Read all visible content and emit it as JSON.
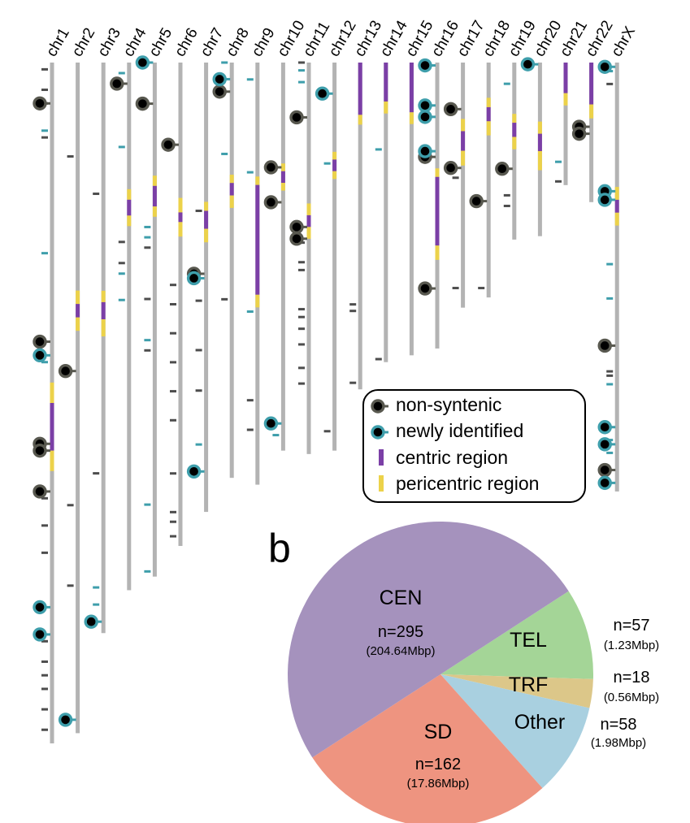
{
  "chart_data": [
    {
      "type": "ideogram",
      "chromosomes": [
        {
          "name": "chr1",
          "length_rel": 1.0,
          "regions": [
            {
              "kind": "pericentric",
              "start": 0.47,
              "end": 0.5
            },
            {
              "kind": "centric",
              "start": 0.5,
              "end": 0.57
            },
            {
              "kind": "pericentric",
              "start": 0.57,
              "end": 0.6
            }
          ],
          "nonsyntenic": [
            0.06,
            0.41,
            0.56,
            0.57,
            0.63
          ],
          "newly": [
            0.43,
            0.8,
            0.84
          ],
          "grey_ticks": [
            0.01,
            0.04,
            0.06,
            0.11,
            0.64,
            0.68,
            0.72,
            0.85,
            0.88,
            0.9,
            0.92,
            0.95,
            0.98
          ],
          "teal_ticks": [
            0.1,
            0.28,
            0.44
          ]
        },
        {
          "name": "chr2",
          "length_rel": 0.985,
          "regions": [
            {
              "kind": "pericentric",
              "start": 0.34,
              "end": 0.36
            },
            {
              "kind": "centric",
              "start": 0.36,
              "end": 0.38
            },
            {
              "kind": "pericentric",
              "start": 0.38,
              "end": 0.4
            }
          ],
          "nonsyntenic": [
            0.46
          ],
          "newly": [
            0.98
          ],
          "grey_ticks": [
            0.14,
            0.66,
            0.78
          ],
          "teal_ticks": []
        },
        {
          "name": "chr3",
          "length_rel": 0.838,
          "regions": [
            {
              "kind": "pericentric",
              "start": 0.4,
              "end": 0.42
            },
            {
              "kind": "centric",
              "start": 0.42,
              "end": 0.45
            },
            {
              "kind": "pericentric",
              "start": 0.45,
              "end": 0.48
            }
          ],
          "nonsyntenic": [],
          "newly": [
            0.98
          ],
          "grey_ticks": [
            0.23,
            0.72
          ],
          "teal_ticks": [
            0.92,
            0.95
          ]
        },
        {
          "name": "chr4",
          "length_rel": 0.775,
          "regions": [
            {
              "kind": "pericentric",
              "start": 0.24,
              "end": 0.26
            },
            {
              "kind": "centric",
              "start": 0.26,
              "end": 0.29
            },
            {
              "kind": "pericentric",
              "start": 0.29,
              "end": 0.31
            }
          ],
          "nonsyntenic": [
            0.04
          ],
          "newly": [],
          "grey_ticks": [
            0.34,
            0.38
          ],
          "teal_ticks": [
            0.02,
            0.16,
            0.4,
            0.45
          ]
        },
        {
          "name": "chr5",
          "length_rel": 0.755,
          "regions": [
            {
              "kind": "pericentric",
              "start": 0.22,
              "end": 0.24
            },
            {
              "kind": "centric",
              "start": 0.24,
              "end": 0.28
            },
            {
              "kind": "pericentric",
              "start": 0.28,
              "end": 0.3
            }
          ],
          "nonsyntenic": [
            0.08
          ],
          "newly": [
            0.0
          ],
          "grey_ticks": [
            0.36,
            0.46,
            0.56
          ],
          "teal_ticks": [
            0.32,
            0.34,
            0.54,
            0.86,
            0.99
          ]
        },
        {
          "name": "chr6",
          "length_rel": 0.71,
          "regions": [
            {
              "kind": "pericentric",
              "start": 0.28,
              "end": 0.31
            },
            {
              "kind": "centric",
              "start": 0.31,
              "end": 0.33
            },
            {
              "kind": "pericentric",
              "start": 0.33,
              "end": 0.36
            }
          ],
          "nonsyntenic": [
            0.17
          ],
          "newly": [],
          "grey_ticks": [
            0.46,
            0.5,
            0.56,
            0.62,
            0.68,
            0.74,
            0.85,
            0.93,
            0.95,
            0.98
          ],
          "teal_ticks": []
        },
        {
          "name": "chr7",
          "length_rel": 0.66,
          "regions": [
            {
              "kind": "pericentric",
              "start": 0.31,
              "end": 0.33
            },
            {
              "kind": "centric",
              "start": 0.33,
              "end": 0.37
            },
            {
              "kind": "pericentric",
              "start": 0.37,
              "end": 0.4
            }
          ],
          "nonsyntenic": [
            0.47
          ],
          "newly": [
            0.48,
            0.91
          ],
          "grey_ticks": [
            0.33,
            0.53,
            0.64,
            0.73
          ],
          "teal_ticks": [
            0.85
          ]
        },
        {
          "name": "chr8",
          "length_rel": 0.61,
          "regions": [
            {
              "kind": "pericentric",
              "start": 0.27,
              "end": 0.29
            },
            {
              "kind": "centric",
              "start": 0.29,
              "end": 0.32
            },
            {
              "kind": "pericentric",
              "start": 0.32,
              "end": 0.35
            }
          ],
          "nonsyntenic": [
            0.07
          ],
          "newly": [
            0.04
          ],
          "grey_ticks": [
            0.57
          ],
          "teal_ticks": [
            0.0,
            0.22
          ]
        },
        {
          "name": "chr9",
          "length_rel": 0.62,
          "regions": [
            {
              "kind": "pericentric",
              "start": 0.27,
              "end": 0.29
            },
            {
              "kind": "centric",
              "start": 0.29,
              "end": 0.55
            },
            {
              "kind": "pericentric",
              "start": 0.55,
              "end": 0.58
            }
          ],
          "nonsyntenic": [],
          "newly": [],
          "grey_ticks": [
            0.8,
            0.87
          ],
          "teal_ticks": [
            0.04,
            0.26,
            0.59
          ]
        },
        {
          "name": "chr10",
          "length_rel": 0.57,
          "regions": [
            {
              "kind": "pericentric",
              "start": 0.26,
              "end": 0.28
            },
            {
              "kind": "centric",
              "start": 0.28,
              "end": 0.31
            },
            {
              "kind": "pericentric",
              "start": 0.31,
              "end": 0.33
            }
          ],
          "nonsyntenic": [
            0.27,
            0.36
          ],
          "newly": [
            0.93
          ],
          "grey_ticks": [],
          "teal_ticks": [
            0.96
          ]
        },
        {
          "name": "chr11",
          "length_rel": 0.575,
          "regions": [
            {
              "kind": "pericentric",
              "start": 0.36,
              "end": 0.39
            },
            {
              "kind": "centric",
              "start": 0.39,
              "end": 0.42
            },
            {
              "kind": "pericentric",
              "start": 0.42,
              "end": 0.45
            }
          ],
          "nonsyntenic": [
            0.14,
            0.42,
            0.45
          ],
          "newly": [],
          "grey_ticks": [
            0.0,
            0.46,
            0.51,
            0.53,
            0.63,
            0.65,
            0.68,
            0.72,
            0.78,
            0.82
          ],
          "teal_ticks": [
            0.02,
            0.05
          ]
        },
        {
          "name": "chr12",
          "length_rel": 0.57,
          "regions": [
            {
              "kind": "pericentric",
              "start": 0.23,
              "end": 0.25
            },
            {
              "kind": "centric",
              "start": 0.25,
              "end": 0.28
            },
            {
              "kind": "pericentric",
              "start": 0.28,
              "end": 0.3
            }
          ],
          "nonsyntenic": [],
          "newly": [
            0.08
          ],
          "grey_ticks": [
            0.95
          ],
          "teal_ticks": [
            0.26
          ]
        },
        {
          "name": "chr13",
          "length_rel": 0.48,
          "regions": [
            {
              "kind": "centric",
              "start": 0.0,
              "end": 0.16
            },
            {
              "kind": "pericentric",
              "start": 0.16,
              "end": 0.19
            }
          ],
          "nonsyntenic": [],
          "newly": [],
          "grey_ticks": [
            0.74,
            0.76,
            0.98
          ],
          "teal_ticks": []
        },
        {
          "name": "chr14",
          "length_rel": 0.44,
          "regions": [
            {
              "kind": "centric",
              "start": 0.0,
              "end": 0.13
            },
            {
              "kind": "pericentric",
              "start": 0.13,
              "end": 0.17
            }
          ],
          "nonsyntenic": [],
          "newly": [],
          "grey_ticks": [
            0.99
          ],
          "teal_ticks": [
            0.29
          ]
        },
        {
          "name": "chr15",
          "length_rel": 0.43,
          "regions": [
            {
              "kind": "centric",
              "start": 0.0,
              "end": 0.17
            },
            {
              "kind": "pericentric",
              "start": 0.17,
              "end": 0.21
            }
          ],
          "nonsyntenic": [],
          "newly": [],
          "grey_ticks": [],
          "teal_ticks": []
        },
        {
          "name": "chr16",
          "length_rel": 0.42,
          "regions": [
            {
              "kind": "pericentric",
              "start": 0.37,
              "end": 0.4
            },
            {
              "kind": "centric",
              "start": 0.4,
              "end": 0.64
            },
            {
              "kind": "pericentric",
              "start": 0.64,
              "end": 0.69
            }
          ],
          "nonsyntenic": [
            0.33,
            0.79
          ],
          "newly": [
            0.01,
            0.15,
            0.19,
            0.31
          ],
          "grey_ticks": [],
          "teal_ticks": []
        },
        {
          "name": "chr17",
          "length_rel": 0.36,
          "regions": [
            {
              "kind": "pericentric",
              "start": 0.23,
              "end": 0.28
            },
            {
              "kind": "centric",
              "start": 0.28,
              "end": 0.36
            },
            {
              "kind": "pericentric",
              "start": 0.36,
              "end": 0.42
            }
          ],
          "nonsyntenic": [
            0.19,
            0.43
          ],
          "newly": [],
          "grey_ticks": [
            0.47,
            0.92
          ],
          "teal_ticks": []
        },
        {
          "name": "chr18",
          "length_rel": 0.345,
          "regions": [
            {
              "kind": "pericentric",
              "start": 0.15,
              "end": 0.19
            },
            {
              "kind": "centric",
              "start": 0.19,
              "end": 0.25
            },
            {
              "kind": "pericentric",
              "start": 0.25,
              "end": 0.31
            }
          ],
          "nonsyntenic": [
            0.59
          ],
          "newly": [],
          "grey_ticks": [
            0.96
          ],
          "teal_ticks": []
        },
        {
          "name": "chr19",
          "length_rel": 0.26,
          "regions": [
            {
              "kind": "pericentric",
              "start": 0.29,
              "end": 0.34
            },
            {
              "kind": "centric",
              "start": 0.34,
              "end": 0.42
            },
            {
              "kind": "pericentric",
              "start": 0.42,
              "end": 0.49
            }
          ],
          "nonsyntenic": [
            0.6
          ],
          "newly": [],
          "grey_ticks": [
            0.75,
            0.81
          ],
          "teal_ticks": [
            0.12
          ]
        },
        {
          "name": "chr20",
          "length_rel": 0.255,
          "regions": [
            {
              "kind": "pericentric",
              "start": 0.34,
              "end": 0.41
            },
            {
              "kind": "centric",
              "start": 0.41,
              "end": 0.51
            },
            {
              "kind": "pericentric",
              "start": 0.51,
              "end": 0.62
            }
          ],
          "nonsyntenic": [],
          "newly": [
            0.01
          ],
          "grey_ticks": [],
          "teal_ticks": []
        },
        {
          "name": "chr21",
          "length_rel": 0.18,
          "regions": [
            {
              "kind": "centric",
              "start": 0.0,
              "end": 0.25
            },
            {
              "kind": "pericentric",
              "start": 0.25,
              "end": 0.35
            }
          ],
          "nonsyntenic": [],
          "newly": [],
          "grey_ticks": [
            0.97
          ],
          "teal_ticks": [
            0.81
          ]
        },
        {
          "name": "chr22",
          "length_rel": 0.205,
          "regions": [
            {
              "kind": "centric",
              "start": 0.0,
              "end": 0.3
            },
            {
              "kind": "pericentric",
              "start": 0.3,
              "end": 0.4
            }
          ],
          "nonsyntenic": [
            0.46,
            0.51
          ],
          "newly": [],
          "grey_ticks": [],
          "teal_ticks": []
        },
        {
          "name": "chrX",
          "length_rel": 0.63,
          "regions": [
            {
              "kind": "pericentric",
              "start": 0.29,
              "end": 0.32
            },
            {
              "kind": "centric",
              "start": 0.32,
              "end": 0.35
            },
            {
              "kind": "pericentric",
              "start": 0.35,
              "end": 0.38
            }
          ],
          "nonsyntenic": [
            0.66,
            0.95
          ],
          "newly": [
            0.01,
            0.3,
            0.32,
            0.85,
            0.89,
            0.98
          ],
          "grey_ticks": [
            0.05,
            0.72,
            0.73
          ],
          "teal_ticks": [
            0.02,
            0.47,
            0.55,
            0.75,
            0.88,
            0.91
          ]
        }
      ],
      "legend": [
        {
          "key": "nonsyntenic",
          "label": "non-syntenic",
          "color": "#58584f"
        },
        {
          "key": "newly",
          "label": "newly identified",
          "color": "#3e9eab"
        },
        {
          "key": "centric",
          "label": "centric region",
          "color": "#7b3fa6"
        },
        {
          "key": "pericentric",
          "label": "pericentric region",
          "color": "#ecd24a"
        }
      ],
      "colors": {
        "chromosome": "#b3b3b3",
        "grey_tick": "#4d4d4d",
        "teal_tick": "#3e9eab",
        "marker_center": "#000000"
      }
    },
    {
      "type": "pie",
      "panel_label": "b",
      "slices": [
        {
          "label": "CEN",
          "n": 295,
          "mbp": 204.64,
          "count_text": "n=295",
          "size_text": "(204.64Mbp)",
          "color": "#a592bd"
        },
        {
          "label": "TEL",
          "n": 57,
          "mbp": 1.23,
          "count_text": "n=57",
          "size_text": "(1.23Mbp)",
          "color": "#a4d597"
        },
        {
          "label": "TRF",
          "n": 18,
          "mbp": 0.56,
          "count_text": "n=18",
          "size_text": "(0.56Mbp)",
          "color": "#dcc789"
        },
        {
          "label": "Other",
          "n": 58,
          "mbp": 1.98,
          "count_text": "n=58",
          "size_text": "(1.98Mbp)",
          "color": "#a9d0e0"
        },
        {
          "label": "SD",
          "n": 162,
          "mbp": 17.86,
          "count_text": "n=162",
          "size_text": "(17.86Mbp)",
          "color": "#ee9480"
        }
      ]
    }
  ]
}
